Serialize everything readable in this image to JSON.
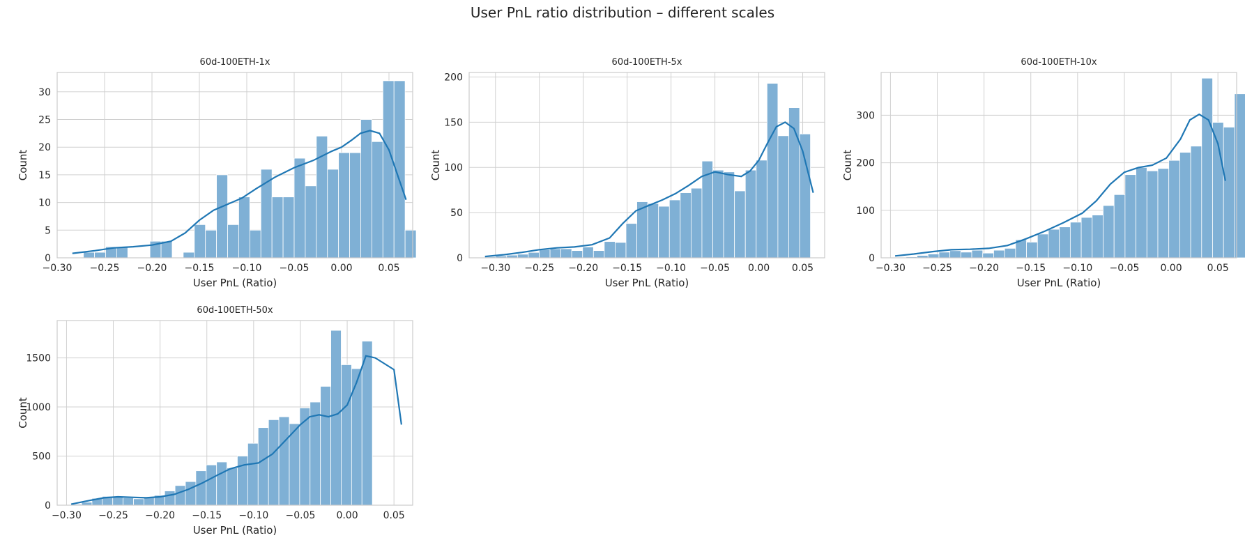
{
  "figure": {
    "title": "User PnL ratio distribution – different scales"
  },
  "colors": {
    "bar": "#7fb0d5",
    "kde": "#1f77b4",
    "grid": "#d0d0d0",
    "frame": "#cccccc"
  },
  "chart_data": [
    {
      "type": "bar",
      "title": "60d-100ETH-1x",
      "xlabel": "User PnL (Ratio)",
      "ylabel": "Count",
      "xlim": [
        -0.3,
        0.075
      ],
      "ylim": [
        0,
        33.5
      ],
      "xticks": [
        -0.3,
        -0.25,
        -0.2,
        -0.15,
        -0.1,
        -0.05,
        0.0,
        0.05
      ],
      "xtick_labels": [
        "−0.30",
        "−0.25",
        "−0.20",
        "−0.15",
        "−0.10",
        "−0.05",
        "0.00",
        "0.05"
      ],
      "yticks": [
        0,
        5,
        10,
        15,
        20,
        25,
        30
      ],
      "yticklabels": [
        "0",
        "5",
        "10",
        "15",
        "20",
        "25",
        "30"
      ],
      "bin_start": -0.284,
      "bin_width": 0.0117,
      "values": [
        0,
        1,
        1,
        2,
        2,
        0,
        0,
        3,
        3,
        0,
        1,
        6,
        5,
        15,
        6,
        11,
        5,
        16,
        11,
        11,
        18,
        13,
        22,
        16,
        19,
        19,
        25,
        21,
        32,
        32,
        5
      ],
      "kde": [
        [
          -0.284,
          0.8
        ],
        [
          -0.26,
          1.3
        ],
        [
          -0.24,
          1.8
        ],
        [
          -0.22,
          2.0
        ],
        [
          -0.2,
          2.3
        ],
        [
          -0.18,
          3.0
        ],
        [
          -0.165,
          4.5
        ],
        [
          -0.15,
          6.8
        ],
        [
          -0.135,
          8.6
        ],
        [
          -0.12,
          9.7
        ],
        [
          -0.105,
          10.8
        ],
        [
          -0.09,
          12.5
        ],
        [
          -0.07,
          14.6
        ],
        [
          -0.05,
          16.3
        ],
        [
          -0.03,
          17.6
        ],
        [
          -0.01,
          19.3
        ],
        [
          0.0,
          20.0
        ],
        [
          0.01,
          21.2
        ],
        [
          0.02,
          22.5
        ],
        [
          0.03,
          23.0
        ],
        [
          0.04,
          22.5
        ],
        [
          0.05,
          19.5
        ],
        [
          0.06,
          14.5
        ],
        [
          0.068,
          10.5
        ]
      ]
    },
    {
      "type": "bar",
      "title": "60d-100ETH-5x",
      "xlabel": "User PnL (Ratio)",
      "ylabel": "Count",
      "xlim": [
        -0.33,
        0.075
      ],
      "ylim": [
        0,
        205
      ],
      "xticks": [
        -0.3,
        -0.25,
        -0.2,
        -0.15,
        -0.1,
        -0.05,
        0.0,
        0.05
      ],
      "xtick_labels": [
        "−0.30",
        "−0.25",
        "−0.20",
        "−0.15",
        "−0.10",
        "−0.05",
        "0.00",
        "0.05"
      ],
      "yticks": [
        0,
        50,
        100,
        150,
        200
      ],
      "yticklabels": [
        "0",
        "50",
        "100",
        "150",
        "200"
      ],
      "bin_start": -0.312,
      "bin_width": 0.01236,
      "values": [
        1,
        2,
        3,
        4,
        6,
        9,
        10,
        10,
        8,
        12,
        8,
        18,
        17,
        38,
        62,
        60,
        57,
        64,
        72,
        77,
        107,
        97,
        95,
        74,
        97,
        108,
        193,
        135,
        166,
        137
      ],
      "kde": [
        [
          -0.312,
          1.5
        ],
        [
          -0.29,
          3.5
        ],
        [
          -0.27,
          6.0
        ],
        [
          -0.25,
          9.0
        ],
        [
          -0.23,
          11.0
        ],
        [
          -0.21,
          12.0
        ],
        [
          -0.19,
          14.5
        ],
        [
          -0.17,
          22.0
        ],
        [
          -0.155,
          38.0
        ],
        [
          -0.14,
          52.0
        ],
        [
          -0.125,
          58.0
        ],
        [
          -0.11,
          64.0
        ],
        [
          -0.095,
          71.0
        ],
        [
          -0.08,
          80.0
        ],
        [
          -0.065,
          90.0
        ],
        [
          -0.05,
          95.0
        ],
        [
          -0.035,
          92.0
        ],
        [
          -0.02,
          90.0
        ],
        [
          -0.01,
          96.0
        ],
        [
          0.0,
          108.0
        ],
        [
          0.01,
          127.0
        ],
        [
          0.02,
          145.0
        ],
        [
          0.03,
          150.0
        ],
        [
          0.04,
          143.0
        ],
        [
          0.05,
          118.0
        ],
        [
          0.062,
          72.0
        ]
      ]
    },
    {
      "type": "bar",
      "title": "60d-100ETH-10x",
      "xlabel": "User PnL (Ratio)",
      "ylabel": "Count",
      "xlim": [
        -0.31,
        0.07
      ],
      "ylim": [
        0,
        390
      ],
      "xticks": [
        -0.3,
        -0.25,
        -0.2,
        -0.15,
        -0.1,
        -0.05,
        0.0,
        0.05
      ],
      "xtick_labels": [
        "−0.30",
        "−0.25",
        "−0.20",
        "−0.15",
        "−0.10",
        "−0.05",
        "0.00",
        "0.05"
      ],
      "yticks": [
        0,
        100,
        200,
        300
      ],
      "yticklabels": [
        "0",
        "100",
        "200",
        "300"
      ],
      "bin_start": -0.295,
      "bin_width": 0.0117,
      "values": [
        1,
        2,
        5,
        8,
        12,
        15,
        12,
        16,
        10,
        16,
        20,
        38,
        33,
        50,
        60,
        65,
        75,
        85,
        90,
        110,
        133,
        175,
        190,
        183,
        188,
        205,
        222,
        235,
        378,
        285,
        275,
        345
      ],
      "kde": [
        [
          -0.295,
          4.0
        ],
        [
          -0.275,
          8.0
        ],
        [
          -0.255,
          13.0
        ],
        [
          -0.235,
          17.0
        ],
        [
          -0.215,
          18.0
        ],
        [
          -0.195,
          20.0
        ],
        [
          -0.175,
          26.0
        ],
        [
          -0.155,
          40.0
        ],
        [
          -0.135,
          56.0
        ],
        [
          -0.115,
          74.0
        ],
        [
          -0.095,
          94.0
        ],
        [
          -0.08,
          120.0
        ],
        [
          -0.065,
          155.0
        ],
        [
          -0.05,
          180.0
        ],
        [
          -0.035,
          190.0
        ],
        [
          -0.02,
          195.0
        ],
        [
          -0.005,
          210.0
        ],
        [
          0.01,
          250.0
        ],
        [
          0.02,
          290.0
        ],
        [
          0.03,
          302.0
        ],
        [
          0.04,
          290.0
        ],
        [
          0.05,
          240.0
        ],
        [
          0.058,
          162.0
        ]
      ]
    },
    {
      "type": "bar",
      "title": "60d-100ETH-50x",
      "xlabel": "User PnL (Ratio)",
      "ylabel": "Count",
      "xlim": [
        -0.31,
        0.07
      ],
      "ylim": [
        0,
        1880
      ],
      "xticks": [
        -0.3,
        -0.25,
        -0.2,
        -0.15,
        -0.1,
        -0.05,
        0.0,
        0.05
      ],
      "xtick_labels": [
        "−0.30",
        "−0.25",
        "−0.20",
        "−0.15",
        "−0.10",
        "−0.05",
        "0.00",
        "0.05"
      ],
      "yticks": [
        0,
        500,
        1000,
        1500
      ],
      "yticklabels": [
        "0",
        "500",
        "1000",
        "1500"
      ],
      "bin_start": -0.295,
      "bin_width": 0.0111,
      "values": [
        10,
        30,
        70,
        90,
        80,
        75,
        65,
        80,
        100,
        145,
        200,
        240,
        350,
        410,
        440,
        380,
        500,
        630,
        790,
        870,
        900,
        830,
        990,
        1050,
        1210,
        1780,
        1430,
        1390,
        1670
      ],
      "kde": [
        [
          -0.295,
          10.0
        ],
        [
          -0.28,
          40.0
        ],
        [
          -0.26,
          75.0
        ],
        [
          -0.245,
          85.0
        ],
        [
          -0.23,
          80.0
        ],
        [
          -0.215,
          75.0
        ],
        [
          -0.2,
          85.0
        ],
        [
          -0.185,
          110.0
        ],
        [
          -0.17,
          160.0
        ],
        [
          -0.155,
          225.0
        ],
        [
          -0.14,
          300.0
        ],
        [
          -0.125,
          370.0
        ],
        [
          -0.11,
          410.0
        ],
        [
          -0.095,
          430.0
        ],
        [
          -0.08,
          520.0
        ],
        [
          -0.065,
          670.0
        ],
        [
          -0.05,
          820.0
        ],
        [
          -0.04,
          900.0
        ],
        [
          -0.03,
          920.0
        ],
        [
          -0.02,
          900.0
        ],
        [
          -0.01,
          930.0
        ],
        [
          0.0,
          1020.0
        ],
        [
          0.01,
          1250.0
        ],
        [
          0.02,
          1520.0
        ],
        [
          0.03,
          1500.0
        ],
        [
          0.04,
          1440.0
        ],
        [
          0.05,
          1380.0
        ],
        [
          0.058,
          820.0
        ]
      ]
    }
  ]
}
